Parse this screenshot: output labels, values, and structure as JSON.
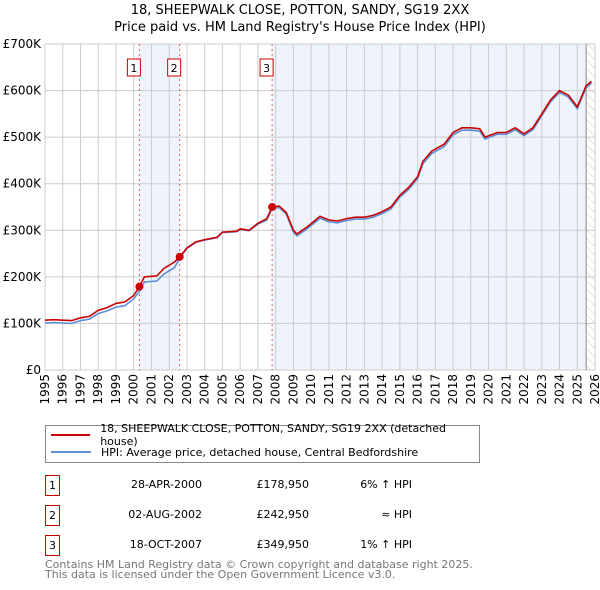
{
  "title": [
    "18, SHEEPWALK CLOSE, POTTON, SANDY, SG19 2XX",
    "Price paid vs. HM Land Registry's House Price Index (HPI)"
  ],
  "chart_data": {
    "type": "line",
    "ylim": [
      0,
      700000
    ],
    "xlim": [
      1995,
      2026
    ],
    "yticks": [
      {
        "v": 0,
        "l": "£0"
      },
      {
        "v": 100000,
        "l": "£100K"
      },
      {
        "v": 200000,
        "l": "£200K"
      },
      {
        "v": 300000,
        "l": "£300K"
      },
      {
        "v": 400000,
        "l": "£400K"
      },
      {
        "v": 500000,
        "l": "£500K"
      },
      {
        "v": 600000,
        "l": "£600K"
      },
      {
        "v": 700000,
        "l": "£700K"
      }
    ],
    "xticks": [
      1995,
      1996,
      1997,
      1998,
      1999,
      2000,
      2001,
      2002,
      2003,
      2004,
      2005,
      2006,
      2007,
      2008,
      2009,
      2010,
      2011,
      2012,
      2013,
      2014,
      2015,
      2016,
      2017,
      2018,
      2019,
      2020,
      2021,
      2022,
      2023,
      2024,
      2025,
      2026
    ],
    "series": [
      {
        "name": "18, SHEEPWALK CLOSE, POTTON, SANDY, SG19 2XX (detached house)",
        "color": "#cc0000",
        "x": [
          1995,
          1995.5,
          1996,
          1996.5,
          1997,
          1997.5,
          1998,
          1998.5,
          1999,
          1999.5,
          2000,
          2000.32,
          2000.6,
          2001.3,
          2001.7,
          2002.3,
          2002.59,
          2003,
          2003.5,
          2004,
          2004.7,
          2005,
          2005.8,
          2006,
          2006.5,
          2007,
          2007.5,
          2007.8,
          2008.2,
          2008.6,
          2009,
          2009.2,
          2009.8,
          2010.5,
          2011,
          2011.5,
          2012,
          2012.5,
          2013,
          2013.5,
          2014,
          2014.5,
          2015,
          2015.5,
          2016,
          2016.3,
          2016.8,
          2017.5,
          2018,
          2018.5,
          2019,
          2019.5,
          2019.8,
          2020.5,
          2021,
          2021.5,
          2022,
          2022.5,
          2023,
          2023.5,
          2024,
          2024.5,
          2025,
          2025.5,
          2025.8
        ],
        "values": [
          107000,
          108000,
          107000,
          106000,
          112000,
          115000,
          128000,
          134000,
          143000,
          146000,
          160000,
          178950,
          200000,
          202000,
          218000,
          232000,
          242950,
          262000,
          275000,
          280000,
          285000,
          296000,
          298000,
          303000,
          300000,
          315000,
          325000,
          349950,
          352000,
          338000,
          300000,
          292000,
          308000,
          330000,
          322000,
          320000,
          325000,
          328000,
          328000,
          332000,
          340000,
          350000,
          375000,
          392000,
          415000,
          448000,
          470000,
          485000,
          510000,
          520000,
          520000,
          518000,
          500000,
          510000,
          510000,
          520000,
          507000,
          520000,
          550000,
          580000,
          600000,
          590000,
          565000,
          610000,
          620000
        ]
      },
      {
        "name": "HPI: Average price, detached house, Central Bedfordshire",
        "color": "#5b8fd6",
        "x": [
          1995,
          1995.5,
          1996,
          1996.5,
          1997,
          1997.5,
          1998,
          1998.5,
          1999,
          1999.5,
          2000,
          2000.32,
          2000.6,
          2001.3,
          2001.7,
          2002.3,
          2002.59,
          2003,
          2003.5,
          2004,
          2004.7,
          2005,
          2005.8,
          2006,
          2006.5,
          2007,
          2007.5,
          2007.8,
          2008.2,
          2008.6,
          2009,
          2009.2,
          2009.8,
          2010.5,
          2011,
          2011.5,
          2012,
          2012.5,
          2013,
          2013.5,
          2014,
          2014.5,
          2015,
          2015.5,
          2016,
          2016.3,
          2016.8,
          2017.5,
          2018,
          2018.5,
          2019,
          2019.5,
          2019.8,
          2020.5,
          2021,
          2021.5,
          2022,
          2022.5,
          2023,
          2023.5,
          2024,
          2024.5,
          2025,
          2025.5,
          2025.8
        ],
        "values": [
          101000,
          102000,
          101000,
          100000,
          106000,
          109000,
          121000,
          127000,
          135000,
          138000,
          153000,
          169000,
          189000,
          191000,
          206000,
          220000,
          240000,
          261000,
          274000,
          279000,
          284000,
          295000,
          297000,
          302000,
          299000,
          313000,
          322000,
          346000,
          349000,
          335000,
          296000,
          288000,
          304000,
          326000,
          318000,
          316000,
          321000,
          324000,
          324000,
          328000,
          336000,
          346000,
          371000,
          388000,
          411000,
          443000,
          465000,
          480000,
          505000,
          515000,
          515000,
          513000,
          496000,
          506000,
          506000,
          516000,
          503000,
          516000,
          546000,
          576000,
          596000,
          586000,
          561000,
          606000,
          616000
        ]
      }
    ],
    "sales": [
      {
        "n": "1",
        "x": 2000.32,
        "v": 178950
      },
      {
        "n": "2",
        "x": 2002.59,
        "v": 242950
      },
      {
        "n": "3",
        "x": 2007.8,
        "v": 349950
      }
    ],
    "forecast_from": 2025.5
  },
  "legend": [
    "18, SHEEPWALK CLOSE, POTTON, SANDY, SG19 2XX (detached house)",
    "HPI: Average price, detached house, Central Bedfordshire"
  ],
  "table": [
    {
      "n": "1",
      "date": "28-APR-2000",
      "price": "£178,950",
      "hpi": "6% ↑ HPI"
    },
    {
      "n": "2",
      "date": "02-AUG-2002",
      "price": "£242,950",
      "hpi": "≈ HPI"
    },
    {
      "n": "3",
      "date": "18-OCT-2007",
      "price": "£349,950",
      "hpi": "1% ↑ HPI"
    }
  ],
  "footer": [
    "Contains HM Land Registry data © Crown copyright and database right 2025.",
    "This data is licensed under the Open Government Licence v3.0."
  ]
}
